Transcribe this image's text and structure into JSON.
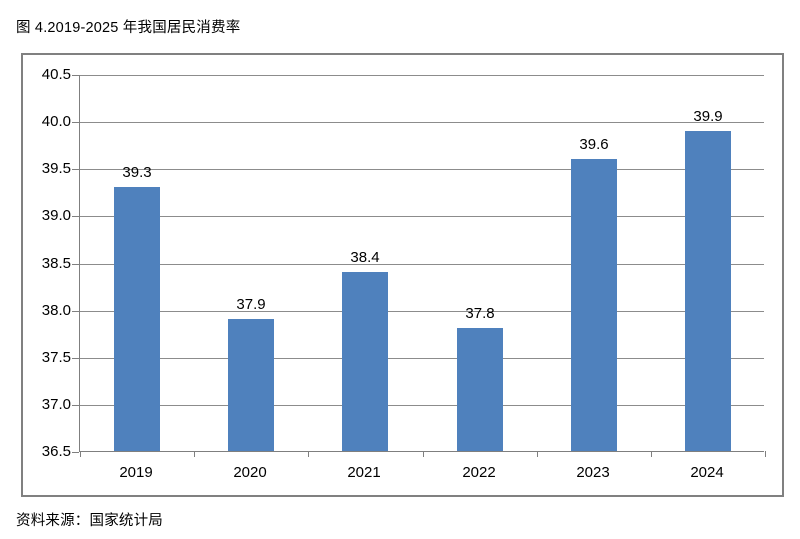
{
  "header": {
    "title": "图 4.2019-2025 年我国居民消费率"
  },
  "footer": {
    "source": "资料来源：国家统计局"
  },
  "chart_data": {
    "type": "bar",
    "title": "图 4.2019-2025 年我国居民消费率",
    "categories": [
      "2019",
      "2020",
      "2021",
      "2022",
      "2023",
      "2024"
    ],
    "values": [
      39.3,
      37.9,
      38.4,
      37.8,
      39.6,
      39.9
    ],
    "data_labels": [
      "39.3",
      "37.9",
      "38.4",
      "37.8",
      "39.6",
      "39.9"
    ],
    "xlabel": "",
    "ylabel": "",
    "ylim": [
      36.5,
      40.5
    ],
    "ytick_step": 0.5,
    "ytick_labels": [
      "40.5",
      "40.0",
      "39.5",
      "39.0",
      "38.5",
      "38.0",
      "37.5",
      "37.0",
      "36.5"
    ],
    "grid": true,
    "legend": "none",
    "bar_color": "#4F81BD",
    "grid_color": "#8c8c8c",
    "axis_color": "#7f7f7f",
    "frame_border_color": "#808080",
    "text_color": "#000000"
  }
}
